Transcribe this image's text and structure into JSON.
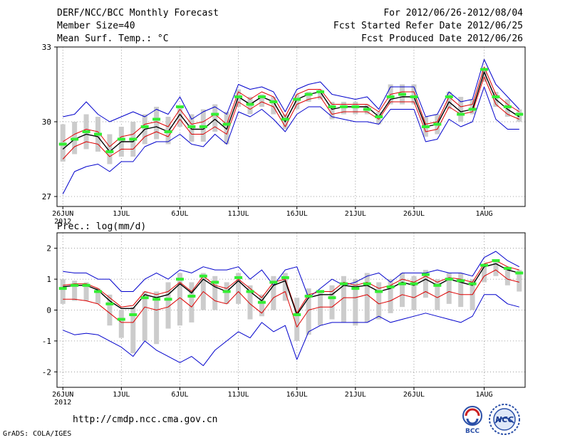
{
  "header": {
    "title": "DERF/NCC/BCC Monthly Forecast",
    "member_size": "Member Size=40",
    "variable": "Mean Surf. Temp.: °C",
    "period": "For 2012/06/26-2012/08/04",
    "fcst_started": "Fcst Started Refer Date 2012/06/25",
    "fcst_produced": "Fcst Produced Date 2012/06/26"
  },
  "footer": {
    "url": "http://cmdp.ncc.cma.gov.cn",
    "grads": "GrADS: COLA/IGES",
    "logo1_text": "BCC",
    "logo2_text": "NCC"
  },
  "colors": {
    "minmax": "#0000cc",
    "band": "#dd0000",
    "mean": "#000000",
    "marker": "#33ee33",
    "bar": "#cccccc",
    "grid": "#888888"
  },
  "chart_data": [
    {
      "type": "line",
      "title": "Mean Surf. Temp.: °C",
      "xlabel": "",
      "ylabel": "°C",
      "ylim": [
        26.6,
        33
      ],
      "y_ticks": [
        "27",
        "30",
        "33"
      ],
      "x_ticks": [
        "26JUN",
        "1JUL",
        "6JUL",
        "11JUL",
        "16JUL",
        "21JUL",
        "26JUL",
        "1AUG"
      ],
      "x_tick_days": [
        0,
        5,
        10,
        15,
        20,
        25,
        30,
        36
      ],
      "year_label": "2012",
      "grid": "dotted",
      "days": 40,
      "series": [
        {
          "name": "max",
          "values": [
            30.2,
            30.3,
            30.8,
            30.3,
            30.0,
            30.2,
            30.4,
            30.2,
            30.5,
            30.3,
            31.0,
            30.1,
            30.4,
            30.6,
            30.3,
            31.5,
            31.3,
            31.4,
            31.2,
            30.4,
            31.3,
            31.5,
            31.6,
            31.1,
            31.0,
            30.9,
            31.0,
            30.5,
            31.4,
            31.4,
            31.4,
            30.2,
            30.3,
            31.2,
            30.8,
            30.9,
            32.5,
            31.5,
            31.0,
            30.5
          ]
        },
        {
          "name": "upper",
          "values": [
            29.2,
            29.5,
            29.7,
            29.6,
            29.0,
            29.4,
            29.5,
            29.9,
            30.0,
            29.8,
            30.5,
            29.9,
            30.0,
            30.3,
            29.9,
            31.2,
            30.9,
            31.2,
            31.0,
            30.2,
            31.1,
            31.3,
            31.3,
            30.7,
            30.7,
            30.7,
            30.7,
            30.4,
            31.1,
            31.2,
            31.2,
            29.9,
            30.0,
            31.0,
            30.6,
            30.7,
            32.2,
            31.1,
            30.7,
            30.4
          ]
        },
        {
          "name": "mean",
          "values": [
            28.9,
            29.3,
            29.5,
            29.4,
            28.8,
            29.2,
            29.2,
            29.7,
            29.8,
            29.6,
            30.3,
            29.7,
            29.7,
            30.1,
            29.7,
            31.0,
            30.7,
            31.0,
            30.8,
            30.0,
            30.9,
            31.1,
            31.2,
            30.5,
            30.6,
            30.6,
            30.6,
            30.2,
            30.9,
            31.0,
            31.0,
            29.8,
            29.9,
            30.8,
            30.4,
            30.5,
            32.0,
            30.9,
            30.5,
            30.2
          ]
        },
        {
          "name": "lower",
          "values": [
            28.5,
            29.0,
            29.2,
            29.1,
            28.6,
            28.9,
            28.9,
            29.4,
            29.6,
            29.4,
            30.1,
            29.5,
            29.5,
            29.8,
            29.5,
            30.8,
            30.5,
            30.8,
            30.6,
            29.8,
            30.7,
            30.9,
            31.0,
            30.3,
            30.4,
            30.4,
            30.4,
            30.1,
            30.8,
            30.8,
            30.8,
            29.6,
            29.7,
            30.6,
            30.3,
            30.4,
            31.8,
            30.7,
            30.3,
            30.1
          ]
        },
        {
          "name": "min",
          "values": [
            27.1,
            28.0,
            28.2,
            28.3,
            28.0,
            28.4,
            28.4,
            29.0,
            29.2,
            29.2,
            29.5,
            29.1,
            29.0,
            29.5,
            29.1,
            30.4,
            30.2,
            30.5,
            30.1,
            29.6,
            30.3,
            30.6,
            30.6,
            30.2,
            30.1,
            30.0,
            30.0,
            29.9,
            30.5,
            30.5,
            30.5,
            29.2,
            29.3,
            30.1,
            29.8,
            30.0,
            31.4,
            30.1,
            29.7,
            29.7
          ]
        },
        {
          "name": "marker",
          "values": [
            29.1,
            29.3,
            29.6,
            29.5,
            28.8,
            29.3,
            29.3,
            29.8,
            30.1,
            29.6,
            30.6,
            29.8,
            29.8,
            30.3,
            29.9,
            31.0,
            30.7,
            31.0,
            30.8,
            30.1,
            30.9,
            31.1,
            31.2,
            30.6,
            30.6,
            30.6,
            30.5,
            30.2,
            31.0,
            31.1,
            31.0,
            29.8,
            29.9,
            31.0,
            30.3,
            30.5,
            32.1,
            31.0,
            30.6,
            30.3
          ]
        },
        {
          "name": "bar_high",
          "values": [
            29.9,
            30.0,
            30.3,
            30.2,
            29.5,
            29.8,
            30.0,
            30.3,
            30.6,
            30.2,
            30.6,
            30.3,
            30.5,
            30.7,
            30.4,
            31.3,
            31.0,
            31.1,
            31.0,
            30.3,
            31.1,
            31.2,
            31.3,
            30.8,
            30.8,
            30.8,
            30.7,
            30.4,
            31.5,
            31.5,
            31.5,
            30.2,
            30.3,
            31.2,
            31.0,
            30.9,
            32.1,
            31.2,
            30.9,
            30.5
          ]
        },
        {
          "name": "bar_low",
          "values": [
            28.4,
            28.7,
            28.9,
            28.8,
            28.3,
            28.6,
            28.6,
            29.1,
            29.3,
            29.1,
            29.8,
            29.2,
            29.2,
            29.6,
            29.1,
            30.6,
            30.3,
            30.6,
            30.3,
            29.7,
            30.5,
            30.8,
            30.9,
            30.1,
            30.3,
            30.3,
            30.3,
            29.9,
            30.7,
            30.7,
            30.7,
            29.4,
            29.5,
            30.5,
            30.0,
            30.3,
            31.6,
            30.6,
            30.2,
            30.0
          ]
        }
      ]
    },
    {
      "type": "line",
      "title": "Prec.: log(mm/d)",
      "xlabel": "",
      "ylabel": "log(mm/d)",
      "ylim": [
        -2.5,
        2.5
      ],
      "y_ticks": [
        "2",
        "1",
        "0",
        "-1",
        "-2"
      ],
      "x_ticks": [
        "26JUN",
        "1JUL",
        "6JUL",
        "11JUL",
        "16JUL",
        "21JUL",
        "26JUL",
        "1AUG"
      ],
      "x_tick_days": [
        0,
        5,
        10,
        15,
        20,
        25,
        30,
        36
      ],
      "year_label": "2012",
      "grid": "dotted",
      "days": 40,
      "series": [
        {
          "name": "max",
          "values": [
            1.25,
            1.2,
            1.2,
            1.0,
            1.0,
            0.6,
            0.6,
            1.0,
            1.2,
            1.0,
            1.3,
            1.2,
            1.4,
            1.3,
            1.3,
            1.4,
            1.0,
            1.3,
            0.8,
            1.3,
            1.4,
            0.4,
            0.7,
            1.0,
            0.8,
            0.9,
            1.1,
            1.2,
            0.9,
            1.2,
            1.2,
            1.2,
            1.3,
            1.2,
            1.2,
            1.1,
            1.7,
            1.9,
            1.6,
            1.4
          ]
        },
        {
          "name": "upper",
          "values": [
            0.8,
            0.85,
            0.85,
            0.7,
            0.4,
            0.1,
            0.15,
            0.6,
            0.5,
            0.6,
            0.9,
            0.6,
            1.1,
            0.8,
            0.7,
            1.0,
            0.7,
            0.4,
            0.9,
            1.0,
            -0.1,
            0.5,
            0.6,
            0.6,
            0.9,
            0.8,
            0.9,
            0.7,
            0.8,
            1.0,
            0.9,
            1.1,
            0.9,
            1.05,
            1.0,
            0.9,
            1.5,
            1.6,
            1.4,
            1.3
          ]
        },
        {
          "name": "mean",
          "values": [
            0.75,
            0.8,
            0.8,
            0.65,
            0.3,
            0.05,
            0.05,
            0.5,
            0.4,
            0.5,
            0.85,
            0.55,
            1.0,
            0.75,
            0.6,
            0.95,
            0.6,
            0.3,
            0.8,
            0.95,
            -0.15,
            0.4,
            0.5,
            0.5,
            0.8,
            0.75,
            0.8,
            0.6,
            0.7,
            0.9,
            0.8,
            1.0,
            0.8,
            1.0,
            0.9,
            0.8,
            1.4,
            1.5,
            1.3,
            1.2
          ]
        },
        {
          "name": "lower",
          "values": [
            0.35,
            0.35,
            0.3,
            0.2,
            -0.1,
            -0.4,
            -0.4,
            0.1,
            0.0,
            0.1,
            0.4,
            0.1,
            0.6,
            0.3,
            0.2,
            0.6,
            0.2,
            -0.1,
            0.4,
            0.6,
            -0.55,
            0.0,
            0.1,
            0.1,
            0.4,
            0.4,
            0.5,
            0.2,
            0.3,
            0.5,
            0.4,
            0.6,
            0.4,
            0.6,
            0.5,
            0.5,
            1.1,
            1.3,
            1.0,
            0.9
          ]
        },
        {
          "name": "min",
          "values": [
            -0.65,
            -0.8,
            -0.75,
            -0.8,
            -1.0,
            -1.2,
            -1.5,
            -1.0,
            -1.3,
            -1.5,
            -1.7,
            -1.5,
            -1.8,
            -1.3,
            -1.0,
            -0.7,
            -0.9,
            -0.4,
            -0.7,
            -0.5,
            -1.6,
            -0.7,
            -0.5,
            -0.4,
            -0.4,
            -0.4,
            -0.4,
            -0.2,
            -0.4,
            -0.3,
            -0.2,
            -0.1,
            -0.2,
            -0.3,
            -0.4,
            -0.2,
            0.5,
            0.5,
            0.2,
            0.1
          ]
        },
        {
          "name": "marker",
          "values": [
            0.7,
            0.8,
            0.8,
            0.6,
            0.2,
            -0.3,
            -0.15,
            0.4,
            0.35,
            0.35,
            1.0,
            0.45,
            1.1,
            0.9,
            0.6,
            1.05,
            0.6,
            0.25,
            0.9,
            1.05,
            -0.15,
            0.45,
            0.6,
            0.4,
            0.85,
            0.7,
            0.85,
            0.6,
            0.75,
            0.85,
            0.85,
            1.15,
            0.8,
            1.0,
            0.95,
            0.85,
            1.45,
            1.6,
            1.35,
            1.2
          ]
        },
        {
          "name": "bar_high",
          "values": [
            1.0,
            0.95,
            0.9,
            0.7,
            0.5,
            0.0,
            0.1,
            0.6,
            0.6,
            0.9,
            1.2,
            0.9,
            1.2,
            1.1,
            0.9,
            1.2,
            0.8,
            0.5,
            1.1,
            1.2,
            0.4,
            0.7,
            0.6,
            0.8,
            1.1,
            1.0,
            1.2,
            0.9,
            1.0,
            1.2,
            1.1,
            1.3,
            1.0,
            1.2,
            1.2,
            1.0,
            1.5,
            1.6,
            1.4,
            1.3
          ]
        },
        {
          "name": "bar_low",
          "values": [
            0.2,
            0.3,
            0.3,
            0.2,
            -0.5,
            -0.9,
            -1.4,
            -1.0,
            -1.1,
            -0.6,
            -0.5,
            -0.4,
            0.0,
            0.0,
            0.2,
            0.2,
            -0.3,
            -0.2,
            0.0,
            0.3,
            -1.0,
            -0.8,
            -0.5,
            -0.3,
            -0.4,
            -0.5,
            -0.4,
            -0.3,
            -0.1,
            0.1,
            0.0,
            0.4,
            0.0,
            0.2,
            0.1,
            0.0,
            0.9,
            1.1,
            0.8,
            0.6
          ]
        }
      ]
    }
  ]
}
